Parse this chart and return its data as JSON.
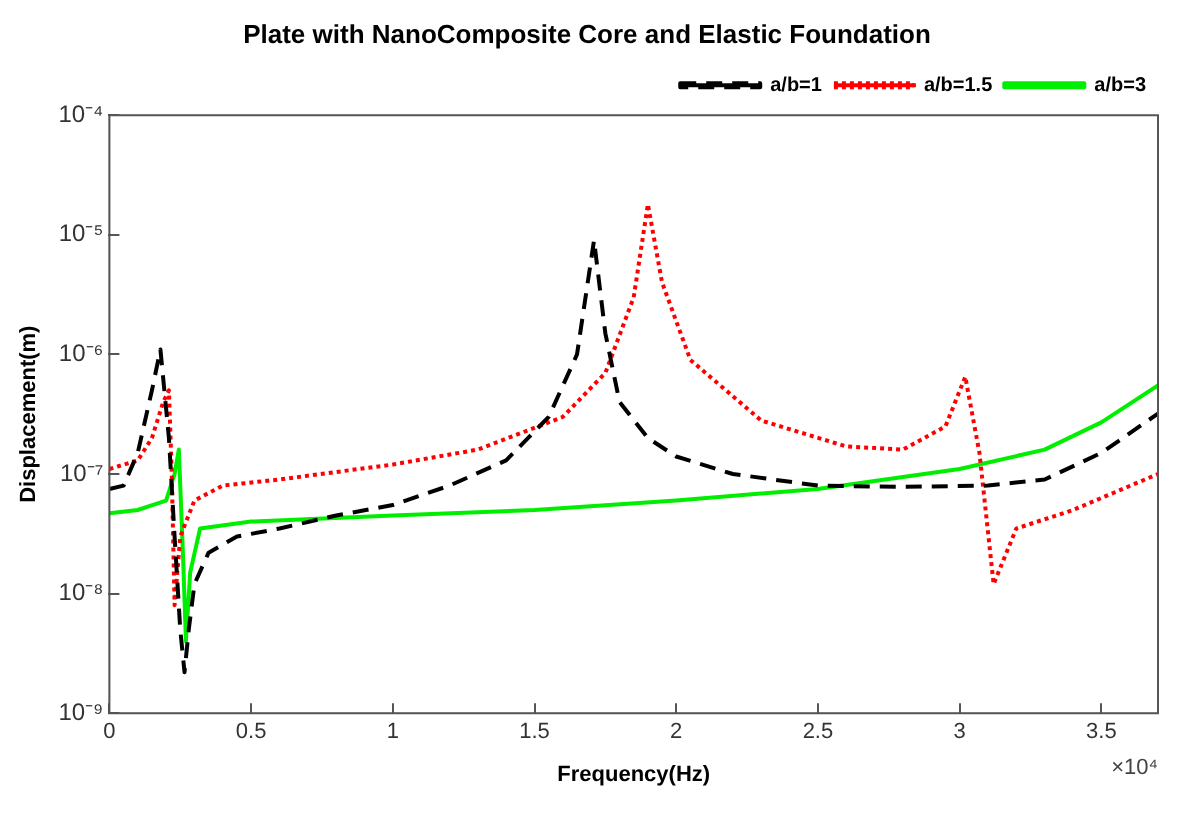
{
  "chart_data": {
    "type": "line",
    "title": "Plate with NanoComposite Core and Elastic Foundation",
    "xlabel": "Frequency(Hz)",
    "ylabel": "Displacement(m)",
    "log": "y",
    "grid": false,
    "legend": "top right",
    "marker": "none",
    "xlim": [
      0,
      3.7
    ],
    "xticks": [
      0,
      0.5,
      1,
      1.5,
      2,
      2.5,
      3,
      3.5
    ],
    "ylim": [
      1e-09,
      0.0001
    ],
    "yticks": [
      {
        "value": 1e-09,
        "label": "10⁻⁹"
      },
      {
        "value": 1e-08,
        "label": "10⁻⁸"
      },
      {
        "value": 1e-07,
        "label": "10⁻⁷"
      },
      {
        "value": 1e-06,
        "label": "10⁻⁶"
      },
      {
        "value": 1e-05,
        "label": "10⁻⁵"
      },
      {
        "value": 0.0001,
        "label": "10⁻⁴"
      }
    ],
    "annotations": [
      "×10⁴"
    ],
    "series": [
      {
        "name": "a/b=1",
        "color": "#000000",
        "line_style": "dashed",
        "x": [
          0,
          0.05,
          0.1,
          0.15,
          0.18,
          0.21,
          0.23,
          0.25,
          0.265,
          0.28,
          0.3,
          0.35,
          0.45,
          0.6,
          0.8,
          1.0,
          1.2,
          1.4,
          1.55,
          1.65,
          1.71,
          1.75,
          1.8,
          1.9,
          2.0,
          2.2,
          2.5,
          2.8,
          3.1,
          3.3,
          3.5,
          3.7
        ],
        "values": [
          7.5e-08,
          8e-08,
          1.5e-07,
          5e-07,
          1.1e-06,
          2e-07,
          3e-08,
          5e-09,
          2.2e-09,
          5e-09,
          1.2e-08,
          2.2e-08,
          3e-08,
          3.5e-08,
          4.5e-08,
          5.5e-08,
          8e-08,
          1.3e-07,
          3e-07,
          1e-06,
          9e-06,
          1.5e-06,
          4e-07,
          2e-07,
          1.4e-07,
          1e-07,
          8e-08,
          7.8e-08,
          8e-08,
          9e-08,
          1.5e-07,
          3.2e-07
        ]
      },
      {
        "name": "a/b=1.5",
        "color": "#ff0000",
        "line_style": "dotted",
        "x": [
          0,
          0.1,
          0.15,
          0.19,
          0.21,
          0.22,
          0.23,
          0.25,
          0.3,
          0.4,
          0.6,
          1.0,
          1.3,
          1.6,
          1.75,
          1.85,
          1.9,
          1.95,
          2.05,
          2.3,
          2.6,
          2.8,
          2.95,
          3.02,
          3.07,
          3.12,
          3.2,
          3.4,
          3.7
        ],
        "values": [
          1.1e-07,
          1.3e-07,
          2e-07,
          4e-07,
          5e-07,
          1e-07,
          8e-09,
          3e-08,
          6e-08,
          8e-08,
          9e-08,
          1.2e-07,
          1.6e-07,
          3e-07,
          7e-07,
          3e-06,
          1.8e-05,
          4e-06,
          9e-07,
          2.8e-07,
          1.7e-07,
          1.6e-07,
          2.5e-07,
          6.5e-07,
          1.5e-07,
          1.2e-08,
          3.5e-08,
          5e-08,
          1e-07
        ]
      },
      {
        "name": "a/b=3",
        "color": "#00ee00",
        "line_style": "solid",
        "x": [
          0,
          0.1,
          0.2,
          0.23,
          0.245,
          0.26,
          0.27,
          0.285,
          0.32,
          0.5,
          1.0,
          1.5,
          2.0,
          2.5,
          3.0,
          3.3,
          3.5,
          3.7
        ],
        "values": [
          4.7e-08,
          5e-08,
          6e-08,
          1e-07,
          1.6e-07,
          2e-08,
          4e-09,
          1.5e-08,
          3.5e-08,
          4e-08,
          4.5e-08,
          5e-08,
          6e-08,
          7.5e-08,
          1.1e-07,
          1.6e-07,
          2.7e-07,
          5.5e-07
        ]
      }
    ]
  }
}
